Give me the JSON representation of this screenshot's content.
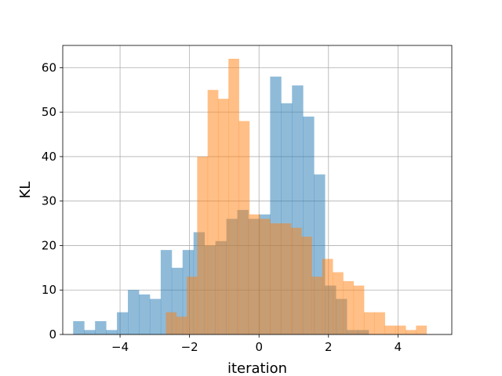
{
  "chart_data": {
    "type": "bar",
    "subtype": "overlaid-histogram",
    "title": "",
    "xlabel": "iteration",
    "ylabel": "KL",
    "xlim": [
      -5.65,
      5.55
    ],
    "ylim": [
      0,
      65
    ],
    "xticks": [
      -4,
      -2,
      0,
      2,
      4
    ],
    "xtick_labels": [
      "−4",
      "−2",
      "0",
      "2",
      "4"
    ],
    "yticks": [
      0,
      10,
      20,
      30,
      40,
      50,
      60
    ],
    "ytick_labels": [
      "0",
      "10",
      "20",
      "30",
      "40",
      "50",
      "60"
    ],
    "grid": true,
    "legend": "none",
    "series": [
      {
        "color": "#1f77b4",
        "alpha": 0.5,
        "bin_start": -5.35,
        "bin_width": 0.315,
        "values": [
          3,
          1,
          3,
          1,
          5,
          10,
          9,
          8,
          19,
          15,
          19,
          23,
          20,
          21,
          26,
          28,
          26,
          27,
          58,
          52,
          56,
          49,
          36,
          11,
          8,
          1,
          1
        ]
      },
      {
        "color": "#ff7f0e",
        "alpha": 0.5,
        "bin_start": -2.68,
        "bin_width": 0.3,
        "values": [
          5,
          4,
          13,
          40,
          55,
          53,
          62,
          48,
          27,
          26,
          25,
          25,
          24,
          22,
          13,
          17,
          14,
          12,
          11,
          5,
          5,
          2,
          2,
          1,
          2
        ]
      }
    ]
  }
}
